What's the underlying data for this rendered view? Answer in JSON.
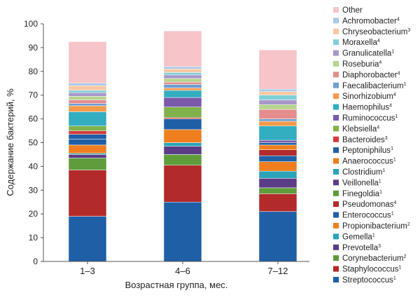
{
  "chart_data": {
    "type": "bar",
    "stacked": true,
    "categories": [
      "1–3",
      "4–6",
      "7–12"
    ],
    "xlabel": "Возрастная группа, мес.",
    "ylabel": "Содержание бактерий, %",
    "ylim": [
      0,
      100
    ],
    "yticks": [
      0,
      10,
      20,
      30,
      40,
      50,
      60,
      70,
      80,
      90,
      100
    ],
    "grid": false,
    "legend_position": "right",
    "series": [
      {
        "name": "Streptococcus",
        "sup": "1",
        "color": "#1f5fa6",
        "values": [
          19.0,
          25.0,
          21.0
        ]
      },
      {
        "name": "Staphylococcus",
        "sup": "1",
        "color": "#b22a2a",
        "values": [
          19.5,
          15.5,
          7.5
        ]
      },
      {
        "name": "Corynebacterium",
        "sup": "2",
        "color": "#5e9c3c",
        "values": [
          5.0,
          4.5,
          2.5
        ]
      },
      {
        "name": "Prevotella",
        "sup": "3",
        "color": "#5b3c86",
        "values": [
          1.5,
          0.0,
          4.0
        ]
      },
      {
        "name": "Gemella",
        "sup": "1",
        "color": "#2ba3b8",
        "values": [
          0.5,
          0.0,
          3.0
        ]
      },
      {
        "name": "Propionibacterium",
        "sup": "2",
        "color": "#ef7f1e",
        "values": [
          3.5,
          0.0,
          4.0
        ]
      },
      {
        "name": "Enterococcus",
        "sup": "1",
        "color": "#1f5fa6",
        "values": [
          2.5,
          0.0,
          2.5
        ]
      },
      {
        "name": "Pseudomonas",
        "sup": "4",
        "color": "#b22a2a",
        "values": [
          0.0,
          0.0,
          2.5
        ]
      },
      {
        "name": "Finegoldia",
        "sup": "1",
        "color": "#5e9c3c",
        "values": [
          0.0,
          0.0,
          0.0
        ]
      },
      {
        "name": "Veillonella",
        "sup": "1",
        "color": "#5b3c86",
        "values": [
          0.0,
          3.5,
          0.0
        ]
      },
      {
        "name": "Clostridium",
        "sup": "1",
        "color": "#2ba3b8",
        "values": [
          0.0,
          1.5,
          0.0
        ]
      },
      {
        "name": "Anaerococcus",
        "sup": "1",
        "color": "#ef7f1e",
        "values": [
          0.0,
          5.5,
          2.0
        ]
      },
      {
        "name": "Peptoniphilus",
        "sup": "1",
        "color": "#1f5fa6",
        "values": [
          2.0,
          4.5,
          1.0
        ]
      },
      {
        "name": "Bacteroides",
        "sup": "3",
        "color": "#d23b3b",
        "values": [
          1.5,
          0.5,
          0.0
        ]
      },
      {
        "name": "Klebsiella",
        "sup": "4",
        "color": "#7fb24a",
        "values": [
          2.0,
          4.5,
          0.0
        ]
      },
      {
        "name": "Ruminococcus",
        "sup": "1",
        "color": "#7b59a8",
        "values": [
          0.0,
          4.0,
          1.0
        ]
      },
      {
        "name": "Haemophilus",
        "sup": "4",
        "color": "#33adc0",
        "values": [
          6.0,
          3.0,
          6.0
        ]
      },
      {
        "name": "Sinorhizobium",
        "sup": "4",
        "color": "#f39a4a",
        "values": [
          2.5,
          1.0,
          2.0
        ]
      },
      {
        "name": "Faecalibacterium",
        "sup": "1",
        "color": "#6d9fd1",
        "values": [
          1.0,
          1.5,
          1.0
        ]
      },
      {
        "name": "Diaphorobacter",
        "sup": "4",
        "color": "#e48d8d",
        "values": [
          1.5,
          1.0,
          4.0
        ]
      },
      {
        "name": "Roseburia",
        "sup": "4",
        "color": "#b6d48e",
        "values": [
          1.5,
          1.5,
          2.0
        ]
      },
      {
        "name": "Granulicatella",
        "sup": "1",
        "color": "#a897c9",
        "values": [
          1.5,
          1.5,
          2.0
        ]
      },
      {
        "name": "Moraxella",
        "sup": "4",
        "color": "#7fcfd9",
        "values": [
          1.0,
          1.0,
          2.0
        ]
      },
      {
        "name": "Chryseobacterium",
        "sup": "3",
        "color": "#f9c8a3",
        "values": [
          2.0,
          1.5,
          1.5
        ]
      },
      {
        "name": "Achromobacter",
        "sup": "4",
        "color": "#a9c8e8",
        "values": [
          1.0,
          1.0,
          1.0
        ]
      },
      {
        "name": "Other",
        "sup": "",
        "color": "#f6c4c9",
        "values": [
          17.5,
          15.0,
          16.5
        ]
      }
    ]
  }
}
